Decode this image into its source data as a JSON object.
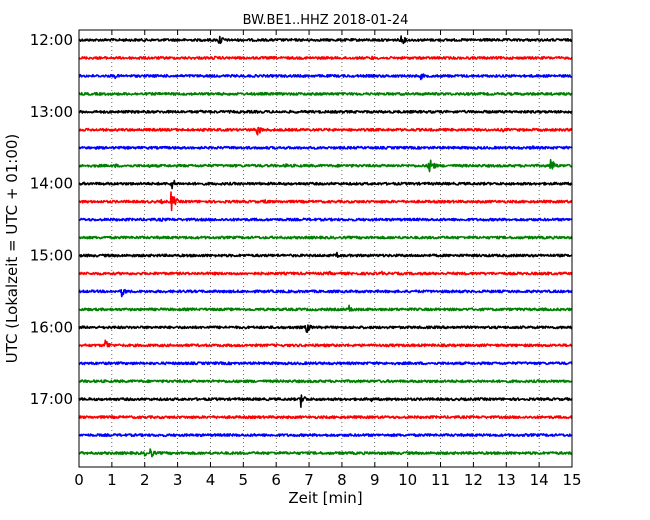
{
  "chart_data": {
    "type": "line",
    "title": "BW.BE1..HHZ 2018-01-24",
    "xlabel": "Zeit  [min]",
    "ylabel": "UTC (Lokalzeit = UTC + 01:00)",
    "xlim": [
      0,
      15
    ],
    "xticks": [
      "0",
      "1",
      "2",
      "3",
      "4",
      "5",
      "6",
      "7",
      "8",
      "9",
      "10",
      "11",
      "12",
      "13",
      "14",
      "15"
    ],
    "yticks": [
      {
        "label": "12:00",
        "row": 0
      },
      {
        "label": "13:00",
        "row": 4
      },
      {
        "label": "14:00",
        "row": 8
      },
      {
        "label": "15:00",
        "row": 12
      },
      {
        "label": "16:00",
        "row": 16
      },
      {
        "label": "17:00",
        "row": 20
      }
    ],
    "grid": "vertical dotted",
    "series_colors": [
      "#000000",
      "#ff0000",
      "#0000ff",
      "#008000"
    ],
    "rows": [
      {
        "color": "#000000",
        "events": [
          [
            4.25,
            1.0
          ],
          [
            9.8,
            0.8
          ],
          [
            8.7,
            0.25
          ],
          [
            9.4,
            0.25
          ],
          [
            4.6,
            0.2
          ]
        ]
      },
      {
        "color": "#ff0000",
        "events": [
          [
            1.8,
            0.35
          ],
          [
            4.1,
            0.3
          ],
          [
            8.9,
            0.3
          ],
          [
            10.1,
            0.2
          ]
        ]
      },
      {
        "color": "#0000ff",
        "events": [
          [
            1.1,
            0.35
          ],
          [
            10.4,
            0.5
          ]
        ]
      },
      {
        "color": "#008000",
        "events": [
          [
            1.0,
            0.15
          ],
          [
            5.5,
            0.15
          ]
        ]
      },
      {
        "color": "#000000",
        "events": [
          [
            3.7,
            0.25
          ],
          [
            7.1,
            0.2
          ]
        ]
      },
      {
        "color": "#ff0000",
        "events": [
          [
            5.4,
            1.0
          ],
          [
            12.9,
            0.3
          ],
          [
            14.1,
            0.2
          ]
        ]
      },
      {
        "color": "#0000ff",
        "events": [
          [
            4.1,
            0.3
          ],
          [
            6.9,
            0.2
          ],
          [
            13.8,
            0.35
          ]
        ]
      },
      {
        "color": "#008000",
        "events": [
          [
            10.65,
            1.5
          ],
          [
            14.35,
            1.2
          ],
          [
            6.3,
            0.35
          ],
          [
            2.1,
            0.3
          ],
          [
            1.1,
            0.3
          ]
        ]
      },
      {
        "color": "#000000",
        "events": [
          [
            2.8,
            1.0
          ],
          [
            14.7,
            0.2
          ]
        ]
      },
      {
        "color": "#ff0000",
        "events": [
          [
            2.8,
            1.4
          ],
          [
            5.65,
            0.45
          ],
          [
            2.5,
            0.3
          ],
          [
            14.8,
            0.3
          ]
        ]
      },
      {
        "color": "#0000ff",
        "events": [
          [
            2.5,
            0.3
          ],
          [
            7.0,
            0.2
          ]
        ]
      },
      {
        "color": "#008000",
        "events": [
          [
            1.5,
            0.2
          ],
          [
            12.0,
            0.2
          ]
        ]
      },
      {
        "color": "#000000",
        "events": [
          [
            7.85,
            0.45
          ],
          [
            11.4,
            0.2
          ]
        ]
      },
      {
        "color": "#ff0000",
        "events": [
          [
            7.6,
            0.35
          ],
          [
            9.2,
            0.35
          ],
          [
            14.2,
            0.35
          ]
        ]
      },
      {
        "color": "#0000ff",
        "events": [
          [
            1.3,
            0.8
          ],
          [
            5.1,
            0.2
          ]
        ]
      },
      {
        "color": "#008000",
        "events": [
          [
            8.2,
            0.7
          ],
          [
            3.4,
            0.25
          ]
        ]
      },
      {
        "color": "#000000",
        "events": [
          [
            6.9,
            1.0
          ],
          [
            11.4,
            0.3
          ],
          [
            14.9,
            0.25
          ]
        ]
      },
      {
        "color": "#ff0000",
        "events": [
          [
            0.8,
            0.9
          ],
          [
            6.7,
            0.2
          ]
        ]
      },
      {
        "color": "#0000ff",
        "events": [
          [
            5.5,
            0.15
          ]
        ]
      },
      {
        "color": "#008000",
        "events": [
          [
            12.2,
            0.3
          ],
          [
            9.2,
            0.2
          ],
          [
            3.0,
            0.15
          ]
        ]
      },
      {
        "color": "#000000",
        "events": [
          [
            6.75,
            1.1
          ],
          [
            8.9,
            0.35
          ]
        ]
      },
      {
        "color": "#ff0000",
        "events": [
          [
            11.0,
            0.15
          ]
        ]
      },
      {
        "color": "#0000ff",
        "events": [
          [
            7.4,
            0.2
          ]
        ]
      },
      {
        "color": "#008000",
        "events": [
          [
            2.15,
            0.9
          ],
          [
            2.0,
            0.4
          ]
        ]
      }
    ]
  }
}
